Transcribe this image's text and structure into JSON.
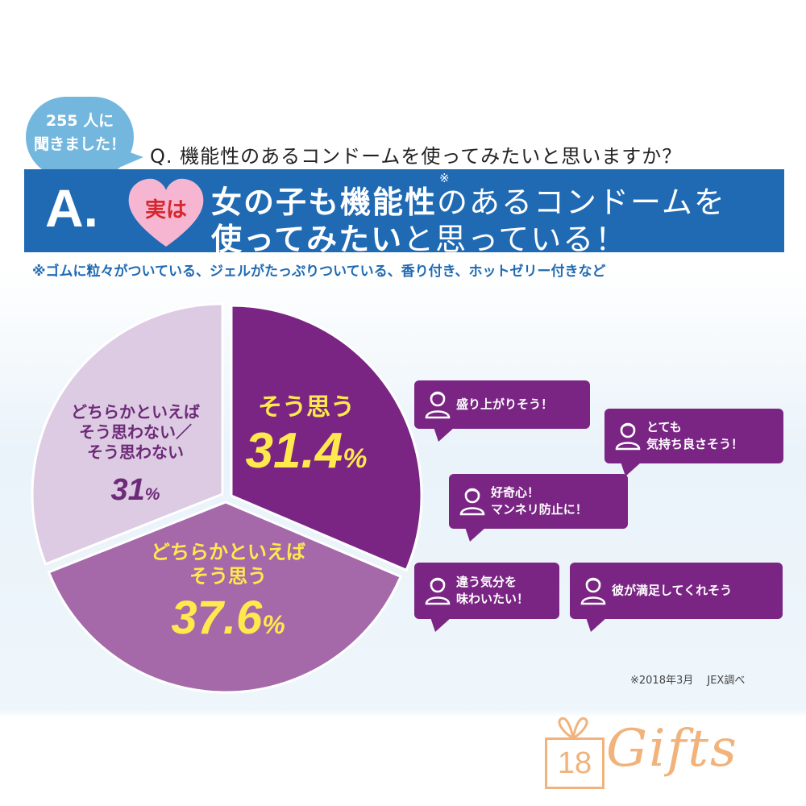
{
  "badge": {
    "line1": "255 人に",
    "line2": "聞きました！"
  },
  "question": "Q. 機能性のあるコンドームを使ってみたいと思いますか？",
  "answer": {
    "letter": "A.",
    "heart_label": "実は",
    "line1_bold": "女の子も機能性",
    "footnote_mark": "※",
    "line1_rest": "のあるコンドームを",
    "line2_bold": "使ってみたい",
    "line2_rest": "と思っている！"
  },
  "note": "※ゴムに粒々がついている、ジェルがたっぷりついている、香り付き、ホットゼリー付きなど",
  "colors": {
    "blue_band": "#1f6ab3",
    "badge_blue": "#74b7de",
    "slice_dark": "#7a2584",
    "slice_mid": "#a569aa",
    "slice_light": "#dccbe2",
    "yellow": "#ffe94c",
    "dark_purple_text": "#6d2a78",
    "logo_orange": "#f1b37b"
  },
  "chart_data": {
    "type": "pie",
    "slices": [
      {
        "label": "そう思う",
        "value": 31.4,
        "display": "31.4",
        "unit": "%",
        "color": "#7a2584"
      },
      {
        "label": "どちらかといえば\nそう思う",
        "value": 37.6,
        "display": "37.6",
        "unit": "%",
        "color": "#a569aa"
      },
      {
        "label": "どちらかといえば\nそう思わない／\nそう思わない",
        "value": 31,
        "display": "31",
        "unit": "%",
        "color": "#dccbe2"
      }
    ]
  },
  "bubbles": [
    {
      "lines": [
        "盛り上がりそう！"
      ]
    },
    {
      "lines": [
        "とても",
        "気持ち良さそう！"
      ]
    },
    {
      "lines": [
        "好奇心！",
        "マンネリ防止に！"
      ]
    },
    {
      "lines": [
        "違う気分を",
        "味わいたい！"
      ]
    },
    {
      "lines": [
        "彼が満足してくれそう"
      ]
    }
  ],
  "source": "※2018年3月　 JEX調べ",
  "logo": {
    "number": "18",
    "word": "Gifts"
  }
}
